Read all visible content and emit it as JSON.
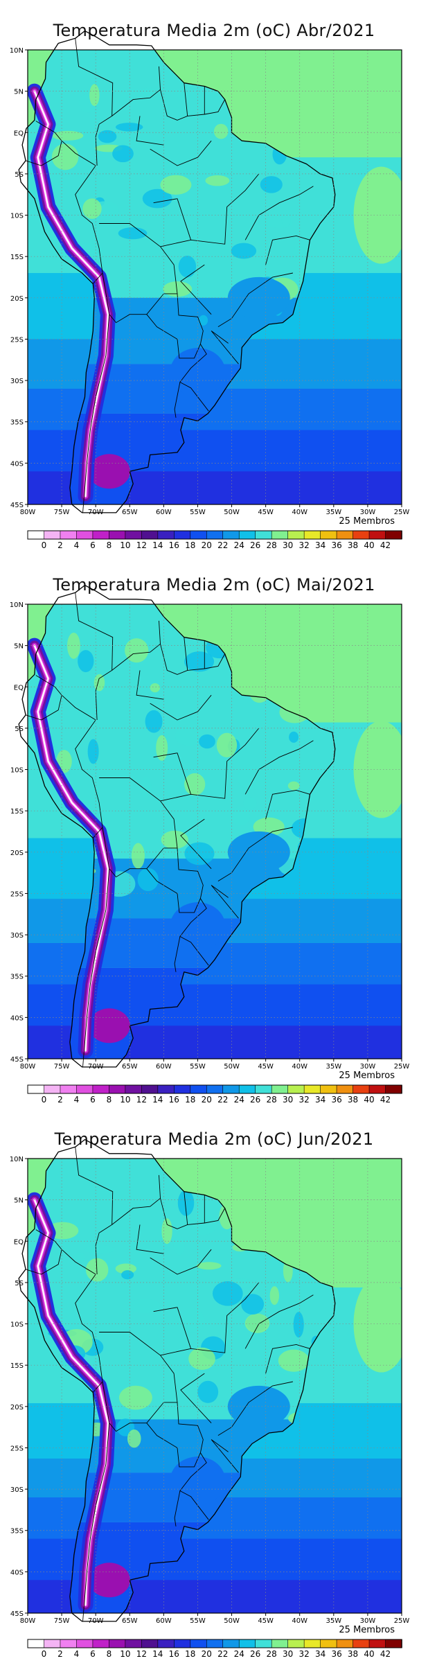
{
  "panels": [
    {
      "title": "Temperatura Media 2m (oC) Abr/2021",
      "seed": 1
    },
    {
      "title": "Temperatura Media 2m (oC) Mai/2021",
      "seed": 2
    },
    {
      "title": "Temperatura Media 2m (oC) Jun/2021",
      "seed": 3
    }
  ],
  "members_label": "25 Membros",
  "lat_labels": [
    "10N",
    "5N",
    "EQ",
    "5S",
    "10S",
    "15S",
    "20S",
    "25S",
    "30S",
    "35S",
    "40S",
    "45S"
  ],
  "lon_labels": [
    "80W",
    "75W",
    "70W",
    "65W",
    "60W",
    "55W",
    "50W",
    "45W",
    "40W",
    "35W",
    "30W",
    "25W"
  ],
  "colorbar": {
    "labels": [
      "0",
      "2",
      "4",
      "6",
      "8",
      "10",
      "12",
      "14",
      "16",
      "18",
      "20",
      "22",
      "24",
      "26",
      "28",
      "30",
      "32",
      "34",
      "36",
      "38",
      "40",
      "42"
    ],
    "colors": [
      "#ffffff",
      "#f4b4f4",
      "#f080f0",
      "#e050e0",
      "#c020c8",
      "#9a10b0",
      "#7010a0",
      "#501090",
      "#3a20c0",
      "#2030e0",
      "#1050f0",
      "#1070f0",
      "#1098e8",
      "#10c0e8",
      "#40e0d8",
      "#80f090",
      "#b8f050",
      "#e8e828",
      "#f0c010",
      "#f09010",
      "#e84010",
      "#c01010",
      "#800000"
    ]
  }
}
